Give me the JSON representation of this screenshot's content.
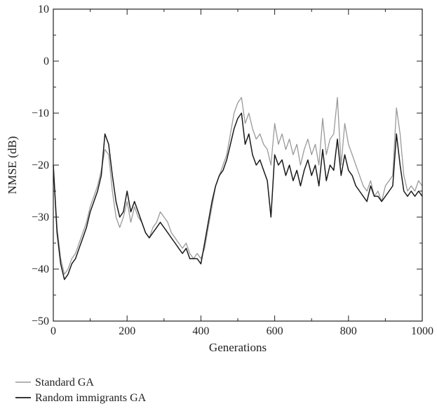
{
  "chart_data": {
    "type": "line",
    "title": "",
    "xlabel": "Generations",
    "ylabel": "NMSE (dB)",
    "xlim": [
      0,
      1000
    ],
    "ylim": [
      -50,
      10
    ],
    "x_ticks": [
      0,
      200,
      400,
      600,
      800,
      1000
    ],
    "y_ticks": [
      -50,
      -40,
      -30,
      -20,
      -10,
      0,
      10
    ],
    "x_tick_labels": [
      "0",
      "200",
      "400",
      "600",
      "800",
      "1000"
    ],
    "y_tick_labels": [
      "−50",
      "−40",
      "−30",
      "−20",
      "−10",
      "0",
      "10"
    ],
    "grid": false,
    "legend_position": "below",
    "series": [
      {
        "name": "Standard GA",
        "color": "#999999",
        "x": [
          0,
          10,
          20,
          30,
          40,
          50,
          60,
          70,
          80,
          90,
          100,
          110,
          120,
          130,
          140,
          150,
          160,
          170,
          180,
          190,
          200,
          210,
          220,
          230,
          240,
          250,
          260,
          270,
          280,
          290,
          300,
          310,
          320,
          330,
          340,
          350,
          360,
          370,
          380,
          390,
          400,
          410,
          420,
          430,
          440,
          450,
          460,
          470,
          480,
          490,
          500,
          510,
          520,
          530,
          540,
          550,
          560,
          570,
          580,
          590,
          600,
          610,
          620,
          630,
          640,
          650,
          660,
          670,
          680,
          690,
          700,
          710,
          720,
          730,
          740,
          750,
          760,
          770,
          780,
          790,
          800,
          810,
          820,
          830,
          840,
          850,
          860,
          870,
          880,
          890,
          900,
          910,
          920,
          930,
          940,
          950,
          960,
          970,
          980,
          990,
          1000
        ],
        "y": [
          -20,
          -32,
          -38,
          -41,
          -40,
          -38,
          -37,
          -35,
          -33,
          -31,
          -28,
          -26,
          -24,
          -21,
          -17,
          -18,
          -25,
          -30,
          -32,
          -30,
          -27,
          -31,
          -28,
          -30,
          -31,
          -33,
          -34,
          -32,
          -31,
          -29,
          -30,
          -31,
          -33,
          -34,
          -35,
          -36,
          -35,
          -37,
          -38,
          -37,
          -38,
          -36,
          -32,
          -28,
          -24,
          -22,
          -20,
          -18,
          -14,
          -10,
          -8,
          -7,
          -12,
          -10,
          -13,
          -15,
          -14,
          -16,
          -17,
          -20,
          -12,
          -16,
          -14,
          -17,
          -15,
          -18,
          -16,
          -20,
          -17,
          -15,
          -18,
          -16,
          -20,
          -11,
          -18,
          -15,
          -14,
          -7,
          -20,
          -12,
          -16,
          -18,
          -20,
          -22,
          -24,
          -25,
          -23,
          -26,
          -25,
          -27,
          -24,
          -23,
          -22,
          -9,
          -14,
          -22,
          -25,
          -24,
          -25,
          -23,
          -24
        ]
      },
      {
        "name": "Random immigrants GA",
        "color": "#1a1a1a",
        "x": [
          0,
          10,
          20,
          30,
          40,
          50,
          60,
          70,
          80,
          90,
          100,
          110,
          120,
          130,
          140,
          150,
          160,
          170,
          180,
          190,
          200,
          210,
          220,
          230,
          240,
          250,
          260,
          270,
          280,
          290,
          300,
          310,
          320,
          330,
          340,
          350,
          360,
          370,
          380,
          390,
          400,
          410,
          420,
          430,
          440,
          450,
          460,
          470,
          480,
          490,
          500,
          510,
          520,
          530,
          540,
          550,
          560,
          570,
          580,
          590,
          600,
          610,
          620,
          630,
          640,
          650,
          660,
          670,
          680,
          690,
          700,
          710,
          720,
          730,
          740,
          750,
          760,
          770,
          780,
          790,
          800,
          810,
          820,
          830,
          840,
          850,
          860,
          870,
          880,
          890,
          900,
          910,
          920,
          930,
          940,
          950,
          960,
          970,
          980,
          990,
          1000
        ],
        "y": [
          -20,
          -33,
          -39,
          -42,
          -41,
          -39,
          -38,
          -36,
          -34,
          -32,
          -29,
          -27,
          -25,
          -22,
          -14,
          -16,
          -22,
          -27,
          -30,
          -29,
          -25,
          -29,
          -27,
          -29,
          -31,
          -33,
          -34,
          -33,
          -32,
          -31,
          -32,
          -33,
          -34,
          -35,
          -36,
          -37,
          -36,
          -38,
          -38,
          -38,
          -39,
          -35,
          -31,
          -27,
          -24,
          -22,
          -21,
          -19,
          -16,
          -13,
          -11,
          -10,
          -16,
          -14,
          -18,
          -20,
          -19,
          -21,
          -23,
          -30,
          -18,
          -20,
          -19,
          -22,
          -20,
          -23,
          -21,
          -24,
          -21,
          -19,
          -22,
          -20,
          -24,
          -17,
          -23,
          -20,
          -21,
          -15,
          -22,
          -18,
          -21,
          -22,
          -24,
          -25,
          -26,
          -27,
          -24,
          -26,
          -26,
          -27,
          -26,
          -25,
          -24,
          -14,
          -20,
          -25,
          -26,
          -25,
          -26,
          -25,
          -26
        ]
      }
    ]
  }
}
